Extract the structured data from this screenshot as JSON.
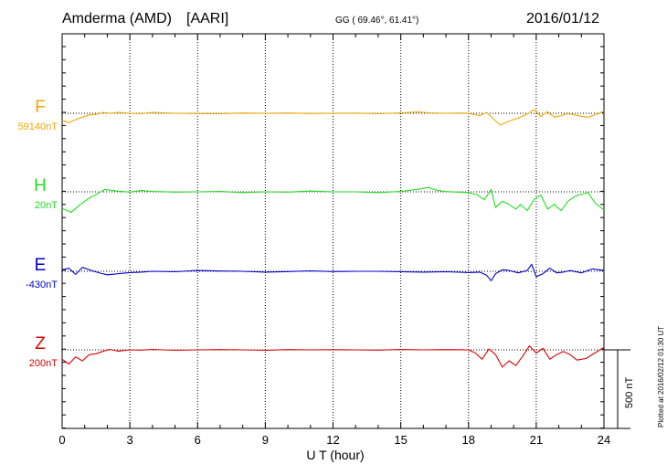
{
  "header": {
    "station": "Amderma (AMD)",
    "network": "[AARI]",
    "coords": "GG ( 69.46°,  61.41°)",
    "date": "2016/01/12"
  },
  "footnote": "Plotted at 2016/02/12 01:30 UT",
  "scale": {
    "label": "500 nT",
    "value_nT": 500
  },
  "chart_data": {
    "type": "line",
    "title": "Amderma (AMD)  [AARI]",
    "xlabel": "U T (hour)",
    "xlim": [
      0,
      24
    ],
    "xticks": [
      "0",
      "3",
      "6",
      "9",
      "12",
      "15",
      "18",
      "21",
      "24"
    ],
    "grid": true,
    "series": [
      {
        "name": "F",
        "baseline_label": "59140nT",
        "color": "#f0a800",
        "baseline_nT": 59140,
        "points": [
          [
            0,
            -45
          ],
          [
            0.3,
            -60
          ],
          [
            0.6,
            -40
          ],
          [
            0.9,
            -25
          ],
          [
            1.2,
            -10
          ],
          [
            1.5,
            -8
          ],
          [
            1.8,
            5
          ],
          [
            2.1,
            0
          ],
          [
            2.5,
            5
          ],
          [
            3,
            0
          ],
          [
            3.5,
            -3
          ],
          [
            4,
            5
          ],
          [
            5,
            0
          ],
          [
            6,
            -2
          ],
          [
            7,
            -3
          ],
          [
            8,
            2
          ],
          [
            9,
            0
          ],
          [
            10,
            2
          ],
          [
            11,
            -2
          ],
          [
            12,
            0
          ],
          [
            13,
            1
          ],
          [
            14,
            -3
          ],
          [
            15,
            3
          ],
          [
            15.8,
            8
          ],
          [
            16.2,
            3
          ],
          [
            17,
            0
          ],
          [
            17.8,
            2
          ],
          [
            18.2,
            -5
          ],
          [
            18.5,
            -15
          ],
          [
            18.8,
            5
          ],
          [
            19.1,
            -35
          ],
          [
            19.4,
            -75
          ],
          [
            19.7,
            -55
          ],
          [
            20.0,
            -40
          ],
          [
            20.3,
            -25
          ],
          [
            20.6,
            -5
          ],
          [
            20.9,
            25
          ],
          [
            21.2,
            -20
          ],
          [
            21.5,
            10
          ],
          [
            21.8,
            -25
          ],
          [
            22.1,
            -15
          ],
          [
            22.4,
            -2
          ],
          [
            22.7,
            -10
          ],
          [
            23.0,
            -20
          ],
          [
            23.3,
            -25
          ],
          [
            23.6,
            -10
          ],
          [
            24,
            12
          ]
        ]
      },
      {
        "name": "H",
        "baseline_label": "20nT",
        "color": "#22dd22",
        "baseline_nT": 20,
        "points": [
          [
            0,
            -105
          ],
          [
            0.4,
            -130
          ],
          [
            0.8,
            -80
          ],
          [
            1.2,
            -40
          ],
          [
            1.6,
            -10
          ],
          [
            1.9,
            15
          ],
          [
            2.4,
            5
          ],
          [
            3,
            -2
          ],
          [
            3.5,
            8
          ],
          [
            4,
            3
          ],
          [
            5,
            -2
          ],
          [
            6,
            0
          ],
          [
            7,
            3
          ],
          [
            8,
            -5
          ],
          [
            9,
            0
          ],
          [
            10,
            -2
          ],
          [
            11,
            5
          ],
          [
            12,
            0
          ],
          [
            13,
            0
          ],
          [
            14,
            -5
          ],
          [
            15,
            3
          ],
          [
            15.7,
            15
          ],
          [
            16.2,
            28
          ],
          [
            16.6,
            10
          ],
          [
            17,
            2
          ],
          [
            18,
            -5
          ],
          [
            18.4,
            -20
          ],
          [
            18.7,
            -50
          ],
          [
            19.0,
            15
          ],
          [
            19.2,
            -100
          ],
          [
            19.5,
            -60
          ],
          [
            19.8,
            -80
          ],
          [
            20.1,
            -110
          ],
          [
            20.3,
            -80
          ],
          [
            20.6,
            -120
          ],
          [
            20.9,
            -50
          ],
          [
            21.2,
            -20
          ],
          [
            21.5,
            -110
          ],
          [
            21.8,
            -80
          ],
          [
            22.1,
            -120
          ],
          [
            22.4,
            -60
          ],
          [
            22.7,
            -30
          ],
          [
            23.0,
            -15
          ],
          [
            23.3,
            -5
          ],
          [
            23.6,
            -70
          ],
          [
            24,
            -115
          ]
        ]
      },
      {
        "name": "E",
        "baseline_label": "-430nT",
        "color": "#0000cc",
        "baseline_nT": -430,
        "points": [
          [
            0,
            10
          ],
          [
            0.3,
            20
          ],
          [
            0.6,
            -20
          ],
          [
            0.9,
            25
          ],
          [
            1.3,
            5
          ],
          [
            1.7,
            -12
          ],
          [
            2,
            -22
          ],
          [
            2.5,
            -15
          ],
          [
            3,
            -8
          ],
          [
            3.5,
            -5
          ],
          [
            4,
            0
          ],
          [
            5,
            -3
          ],
          [
            6,
            5
          ],
          [
            7,
            2
          ],
          [
            8,
            0
          ],
          [
            9,
            -5
          ],
          [
            10,
            -2
          ],
          [
            11,
            3
          ],
          [
            12,
            -2
          ],
          [
            13,
            0
          ],
          [
            14,
            0
          ],
          [
            15,
            -3
          ],
          [
            16,
            -5
          ],
          [
            17,
            -3
          ],
          [
            18,
            -8
          ],
          [
            18.5,
            -5
          ],
          [
            18.8,
            -25
          ],
          [
            19.0,
            -60
          ],
          [
            19.2,
            -15
          ],
          [
            19.5,
            10
          ],
          [
            19.8,
            5
          ],
          [
            20.2,
            -10
          ],
          [
            20.6,
            5
          ],
          [
            20.8,
            45
          ],
          [
            21.0,
            -35
          ],
          [
            21.3,
            -15
          ],
          [
            21.6,
            20
          ],
          [
            21.9,
            -10
          ],
          [
            22.2,
            -5
          ],
          [
            22.5,
            5
          ],
          [
            23,
            -10
          ],
          [
            23.5,
            15
          ],
          [
            24,
            5
          ]
        ]
      },
      {
        "name": "Z",
        "baseline_label": "200nT",
        "color": "#dd0000",
        "baseline_nT": 200,
        "points": [
          [
            0,
            -60
          ],
          [
            0.3,
            -90
          ],
          [
            0.6,
            -45
          ],
          [
            0.9,
            -70
          ],
          [
            1.2,
            -30
          ],
          [
            1.5,
            -25
          ],
          [
            1.8,
            -10
          ],
          [
            2.1,
            3
          ],
          [
            2.5,
            -8
          ],
          [
            3,
            0
          ],
          [
            3.5,
            -2
          ],
          [
            4,
            3
          ],
          [
            5,
            -3
          ],
          [
            6,
            0
          ],
          [
            7,
            2
          ],
          [
            8,
            0
          ],
          [
            9,
            -3
          ],
          [
            10,
            2
          ],
          [
            11,
            0
          ],
          [
            12,
            1
          ],
          [
            13,
            0
          ],
          [
            14,
            -2
          ],
          [
            15,
            3
          ],
          [
            16,
            0
          ],
          [
            17,
            2
          ],
          [
            18,
            0
          ],
          [
            18.3,
            -20
          ],
          [
            18.6,
            -60
          ],
          [
            18.9,
            5
          ],
          [
            19.2,
            -30
          ],
          [
            19.5,
            -110
          ],
          [
            19.8,
            -70
          ],
          [
            20.1,
            -100
          ],
          [
            20.4,
            -40
          ],
          [
            20.7,
            25
          ],
          [
            21.0,
            -20
          ],
          [
            21.3,
            10
          ],
          [
            21.6,
            -60
          ],
          [
            21.9,
            -30
          ],
          [
            22.2,
            -10
          ],
          [
            22.5,
            -30
          ],
          [
            22.8,
            -65
          ],
          [
            23.2,
            -55
          ],
          [
            23.6,
            -20
          ],
          [
            24,
            15
          ]
        ]
      }
    ]
  }
}
